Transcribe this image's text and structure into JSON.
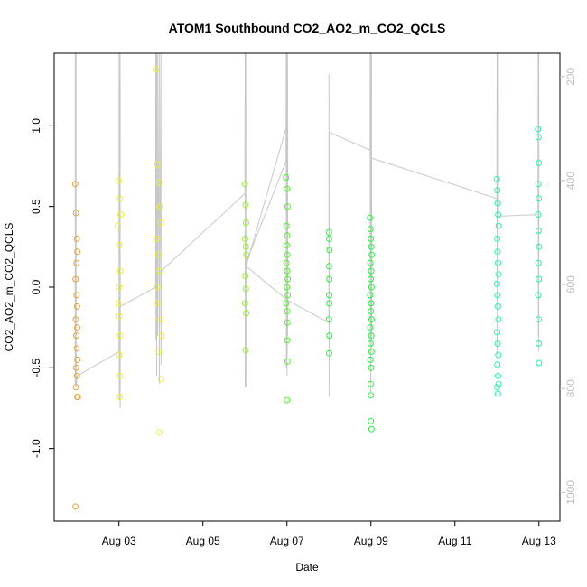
{
  "chart_data": {
    "type": "scatter",
    "title": "ATOM1 Southbound CO2_AO2_m_CO2_QCLS",
    "xlabel": "Date",
    "ylabel": "CO2_AO2_m_CO2_QCLS",
    "y2label": "",
    "x_axis": {
      "type": "date",
      "range": [
        "2016-08-01T11:00",
        "2016-08-13T12:00"
      ]
    },
    "xticks": [
      {
        "date": "2016-08-03",
        "label": "Aug 03"
      },
      {
        "date": "2016-08-05",
        "label": "Aug 05"
      },
      {
        "date": "2016-08-07",
        "label": "Aug 07"
      },
      {
        "date": "2016-08-09",
        "label": "Aug 09"
      },
      {
        "date": "2016-08-11",
        "label": "Aug 11"
      },
      {
        "date": "2016-08-13",
        "label": "Aug 13"
      }
    ],
    "ylim": [
      -1.45,
      1.45
    ],
    "yticks": [
      -1.0,
      -0.5,
      0.0,
      0.5,
      1.0
    ],
    "y2lim": [
      1055,
      155
    ],
    "y2ticks": [
      200,
      400,
      600,
      800,
      1000
    ],
    "grid": false,
    "marker": "open-circle",
    "line_color": "#c8c8c8",
    "series": [
      {
        "color": "#e8a23a",
        "x": [
          "2016-08-01T23:00",
          "2016-08-01T23:30",
          "2016-08-02T00:00",
          "2016-08-02T00:15",
          "2016-08-01T23:45",
          "2016-08-01T23:15",
          "2016-08-01T23:50",
          "2016-08-02T00:05",
          "2016-08-01T23:20",
          "2016-08-02T00:10",
          "2016-08-01T23:40",
          "2016-08-01T23:55",
          "2016-08-02T00:20",
          "2016-08-01T23:35",
          "2016-08-02T00:00",
          "2016-08-01T23:25",
          "2016-08-02T00:30",
          "2016-08-02T00:12",
          "2016-08-01T23:10"
        ],
        "y": [
          0.64,
          0.46,
          0.3,
          0.22,
          0.15,
          0.05,
          -0.05,
          -0.12,
          -0.2,
          -0.25,
          -0.3,
          -0.38,
          -0.45,
          -0.5,
          -0.55,
          -0.62,
          -0.68,
          -0.68,
          -1.36
        ]
      },
      {
        "color": "#f0f028",
        "x": [
          "2016-08-03T00:00",
          "2016-08-03T00:30",
          "2016-08-03T01:00",
          "2016-08-02T23:30",
          "2016-08-03T00:15",
          "2016-08-03T00:45",
          "2016-08-03T00:05",
          "2016-08-02T23:45",
          "2016-08-03T00:20",
          "2016-08-03T00:40",
          "2016-08-03T00:10",
          "2016-08-03T00:35",
          "2016-08-03T00:25",
          "2016-08-03T21:00",
          "2016-08-03T22:00",
          "2016-08-03T23:00",
          "2016-08-03T23:30",
          "2016-08-04T00:00",
          "2016-08-03T21:30",
          "2016-08-03T22:30",
          "2016-08-03T23:15",
          "2016-08-03T21:45",
          "2016-08-03T22:15",
          "2016-08-03T23:45",
          "2016-08-04T00:15",
          "2016-08-03T22:45",
          "2016-08-04T00:10",
          "2016-08-03T23:05"
        ],
        "y": [
          0.66,
          0.55,
          0.45,
          0.38,
          0.26,
          0.1,
          0.0,
          -0.1,
          -0.18,
          -0.3,
          -0.42,
          -0.55,
          -0.68,
          1.35,
          0.76,
          0.65,
          0.5,
          0.4,
          0.3,
          0.2,
          0.1,
          0.0,
          -0.1,
          -0.2,
          -0.3,
          -0.4,
          -0.57,
          -0.9
        ]
      },
      {
        "color": "#98f028",
        "x": [
          "2016-08-06T00:00",
          "2016-08-06T00:20",
          "2016-08-06T00:40",
          "2016-08-06T00:10",
          "2016-08-06T00:30",
          "2016-08-06T00:50",
          "2016-08-06T00:15",
          "2016-08-06T00:35",
          "2016-08-06T00:05",
          "2016-08-06T00:45",
          "2016-08-06T00:25"
        ],
        "y": [
          0.64,
          0.51,
          0.4,
          0.3,
          0.25,
          0.2,
          0.07,
          -0.01,
          -0.1,
          -0.16,
          -0.39
        ]
      },
      {
        "color": "#50f028",
        "x": [
          "2016-08-06T23:30",
          "2016-08-07T00:00",
          "2016-08-07T00:20",
          "2016-08-06T23:45",
          "2016-08-07T00:10",
          "2016-08-06T23:50",
          "2016-08-07T00:15",
          "2016-08-06T23:40",
          "2016-08-07T00:05",
          "2016-08-07T00:25",
          "2016-08-06T23:55",
          "2016-08-07T00:30",
          "2016-08-06T23:35",
          "2016-08-07T00:12",
          "2016-08-07T00:18",
          "2016-08-07T00:08",
          "2016-08-07T00:22",
          "2016-08-07T00:02"
        ],
        "y": [
          0.68,
          0.61,
          0.5,
          0.38,
          0.32,
          0.26,
          0.2,
          0.15,
          0.1,
          0.05,
          0.0,
          -0.05,
          -0.1,
          -0.15,
          -0.22,
          -0.33,
          -0.46,
          -0.7
        ]
      },
      {
        "color": "#28f040",
        "x": [
          "2016-08-08T00:00",
          "2016-08-08T00:10",
          "2016-08-08T00:20",
          "2016-08-08T00:05",
          "2016-08-08T00:15",
          "2016-08-08T00:08",
          "2016-08-08T00:12",
          "2016-08-08T00:02",
          "2016-08-08T00:18",
          "2016-08-08T00:06",
          "2016-08-08T23:30",
          "2016-08-08T23:45",
          "2016-08-09T00:00",
          "2016-08-09T00:15",
          "2016-08-09T00:30",
          "2016-08-08T23:40",
          "2016-08-09T00:10",
          "2016-08-08T23:50",
          "2016-08-09T00:20",
          "2016-08-08T23:35",
          "2016-08-09T00:05",
          "2016-08-08T23:55",
          "2016-08-09T00:25",
          "2016-08-08T23:38",
          "2016-08-09T00:12",
          "2016-08-08T23:48",
          "2016-08-09T00:18",
          "2016-08-08T23:42",
          "2016-08-09T00:08",
          "2016-08-08T23:52",
          "2016-08-09T00:02",
          "2016-08-08T23:58",
          "2016-08-09T00:22"
        ],
        "y": [
          0.34,
          0.3,
          0.23,
          0.13,
          0.05,
          -0.05,
          -0.1,
          -0.2,
          -0.3,
          -0.41,
          0.43,
          0.36,
          0.3,
          0.25,
          0.2,
          0.15,
          0.1,
          0.05,
          0.0,
          -0.05,
          -0.1,
          -0.15,
          -0.2,
          -0.25,
          -0.3,
          -0.35,
          -0.4,
          -0.45,
          -0.5,
          -0.6,
          -0.67,
          -0.83,
          -0.88
        ]
      },
      {
        "color": "#28f0b0",
        "x": [
          "2016-08-12T00:00",
          "2016-08-12T00:15",
          "2016-08-12T00:30",
          "2016-08-12T00:45",
          "2016-08-12T01:00",
          "2016-08-12T00:10",
          "2016-08-12T00:25",
          "2016-08-12T00:40",
          "2016-08-12T00:55",
          "2016-08-12T00:05",
          "2016-08-12T00:20",
          "2016-08-12T00:35",
          "2016-08-12T00:50",
          "2016-08-12T00:08",
          "2016-08-12T00:28",
          "2016-08-12T00:48",
          "2016-08-12T00:18",
          "2016-08-12T00:38",
          "2016-08-12T00:58",
          "2016-08-12T00:12",
          "2016-08-12T00:32",
          "2016-08-12T23:30",
          "2016-08-12T23:45",
          "2016-08-13T00:00",
          "2016-08-12T23:40",
          "2016-08-12T23:55",
          "2016-08-12T23:35",
          "2016-08-12T23:50",
          "2016-08-13T00:05",
          "2016-08-12T23:42",
          "2016-08-12T23:58",
          "2016-08-12T23:38",
          "2016-08-12T23:48",
          "2016-08-12T23:52",
          "2016-08-13T00:02"
        ],
        "y": [
          0.67,
          0.6,
          0.52,
          0.45,
          0.38,
          0.3,
          0.22,
          0.15,
          0.08,
          0.02,
          -0.05,
          -0.12,
          -0.2,
          -0.28,
          -0.35,
          -0.42,
          -0.48,
          -0.55,
          -0.6,
          -0.62,
          -0.66,
          0.98,
          0.93,
          0.77,
          0.64,
          0.55,
          0.45,
          0.35,
          0.25,
          0.15,
          0.05,
          -0.05,
          -0.2,
          -0.35,
          -0.47
        ]
      }
    ]
  }
}
